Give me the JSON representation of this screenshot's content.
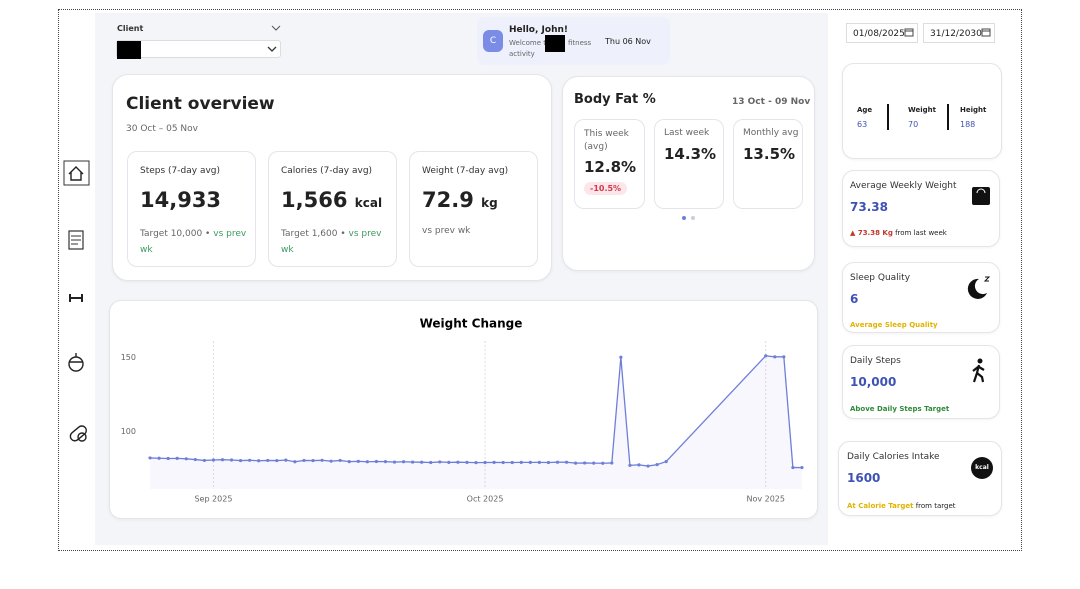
{
  "header": {
    "client_label": "Client",
    "avatar": "C",
    "greeting": "Hello, John!",
    "welcome": [
      "Welcome t",
      "fitness",
      "activity"
    ],
    "date": "Thu 06 Nov",
    "date_from": "01/08/2025",
    "date_to": "31/12/2030"
  },
  "overview": {
    "title": "Client overview",
    "range": "30 Oct – 05 Nov",
    "cards": [
      {
        "label": "Steps (7-day avg)",
        "value": "14,933",
        "target": "Target 10,000 •",
        "compare": "vs prev wk"
      },
      {
        "label": "Calories (7-day avg)",
        "value": "1,566",
        "unit": "kcal",
        "target": "Target 1,600 •",
        "compare": "vs prev wk"
      },
      {
        "label": "Weight (7-day avg)",
        "value": "72.9",
        "unit": "kg",
        "compare": "vs prev wk"
      }
    ]
  },
  "body_fat": {
    "title": "Body Fat %",
    "range": "13 Oct - 09 Nov",
    "cards": [
      {
        "label": "This week (avg)",
        "value": "12.8%",
        "badge": "-10.5%"
      },
      {
        "label": "Last week",
        "value": "14.3%"
      },
      {
        "label": "Monthly avg",
        "value": "13.5%"
      }
    ]
  },
  "profile": [
    {
      "label": "Age",
      "value": "63"
    },
    {
      "label": "Weight",
      "value": "70"
    },
    {
      "label": "Height",
      "value": "188"
    }
  ],
  "stats": {
    "weekly_weight": {
      "title": "Average Weekly Weight",
      "value": "73.38",
      "change": "▲ 73.38 Kg",
      "note": "from last week"
    },
    "sleep": {
      "title": "Sleep Quality",
      "value": "6",
      "note": "Average Sleep Quality"
    },
    "steps": {
      "title": "Daily Steps",
      "value": "10,000",
      "note": "Above Daily Steps Target"
    },
    "calories": {
      "title": "Daily Calories Intake",
      "value": "1600",
      "highlight": "At Calorie Target",
      "note": "from target",
      "icon_label": "kcal"
    }
  },
  "chart_data": {
    "type": "line",
    "title": "Weight Change",
    "color": "#6f7fd8",
    "grid": true,
    "x": [
      0,
      1,
      2,
      3,
      4,
      5,
      6,
      7,
      8,
      9,
      10,
      11,
      12,
      13,
      14,
      15,
      16,
      17,
      18,
      19,
      20,
      21,
      22,
      23,
      24,
      25,
      26,
      27,
      28,
      29,
      30,
      31,
      32,
      33,
      34,
      35,
      36,
      37,
      38,
      39,
      40,
      41,
      42,
      43,
      44,
      45,
      46,
      47,
      48,
      49,
      50,
      51,
      52,
      53,
      54,
      55,
      56,
      57,
      68,
      69,
      70,
      71,
      72
    ],
    "values": [
      82,
      81.8,
      81.6,
      81.7,
      81.4,
      80.9,
      80.3,
      80.6,
      80.8,
      80.6,
      80.2,
      80.4,
      80.1,
      80.3,
      80.2,
      80.5,
      79.4,
      80.3,
      80.2,
      80.4,
      79.8,
      80.3,
      79.5,
      79.7,
      79.4,
      79.6,
      79.5,
      79.2,
      79.4,
      79.2,
      79.1,
      78.9,
      79.3,
      79.0,
      79.1,
      79.0,
      78.8,
      78.9,
      79.0,
      78.9,
      78.9,
      79.0,
      79.0,
      79.0,
      78.9,
      79.1,
      79.1,
      78.5,
      78.6,
      78.5,
      78.4,
      78.6,
      150,
      77,
      77.3,
      76.5,
      77.5,
      79.5,
      151,
      150.3,
      150.3,
      75.5,
      75.5
    ],
    "xlim": [
      -1,
      73
    ],
    "xticks": [
      {
        "value": 7,
        "label": "Sep 2025"
      },
      {
        "value": 37,
        "label": "Oct 2025"
      },
      {
        "value": 68,
        "label": "Nov 2025"
      }
    ],
    "ylim": [
      61,
      161
    ],
    "yticks": [
      100,
      150
    ]
  }
}
